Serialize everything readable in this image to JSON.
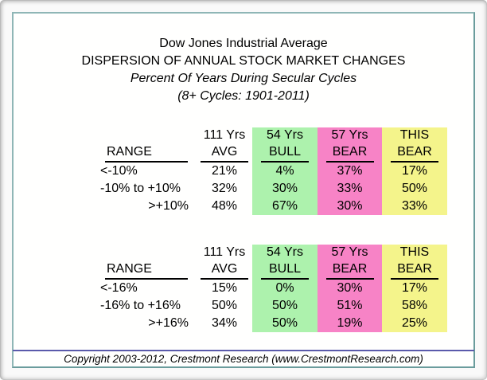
{
  "title": {
    "line1": "Dow Jones Industrial Average",
    "line2": "DISPERSION OF ANNUAL STOCK MARKET CHANGES",
    "line3": "Percent Of Years During Secular Cycles",
    "line4": "(8+ Cycles: 1901-2011)"
  },
  "colors": {
    "bull_green": "#adf2ad",
    "bear_pink": "#f783c6",
    "this_bear_yellow": "#f4f48b",
    "frame_teal": "#7fa9a9",
    "footer_line_navy": "#5a5aab"
  },
  "chart_data": [
    {
      "type": "table",
      "title": "Dispersion of annual changes vs ±10% range",
      "columns_line1": [
        "",
        "111 Yrs",
        "54 Yrs",
        "57 Yrs",
        "THIS"
      ],
      "columns_line2": [
        "RANGE",
        "AVG",
        "BULL",
        "BEAR",
        "BEAR"
      ],
      "column_colors": [
        "#ffffff",
        "#ffffff",
        "#adf2ad",
        "#f783c6",
        "#f4f48b"
      ],
      "rows": [
        [
          "<-10%",
          "21%",
          "4%",
          "37%",
          "17%"
        ],
        [
          "-10% to +10%",
          "32%",
          "30%",
          "33%",
          "50%"
        ],
        [
          ">+10%",
          "48%",
          "67%",
          "30%",
          "33%"
        ]
      ]
    },
    {
      "type": "table",
      "title": "Dispersion of annual changes vs ±16% range",
      "columns_line1": [
        "",
        "111 Yrs",
        "54 Yrs",
        "57 Yrs",
        "THIS"
      ],
      "columns_line2": [
        "RANGE",
        "AVG",
        "BULL",
        "BEAR",
        "BEAR"
      ],
      "column_colors": [
        "#ffffff",
        "#ffffff",
        "#adf2ad",
        "#f783c6",
        "#f4f48b"
      ],
      "rows": [
        [
          "<-16%",
          "15%",
          "0%",
          "30%",
          "17%"
        ],
        [
          "-16% to +16%",
          "50%",
          "50%",
          "51%",
          "58%"
        ],
        [
          ">+16%",
          "34%",
          "50%",
          "19%",
          "25%"
        ]
      ]
    }
  ],
  "footer": {
    "copyright": "Copyright 2003-2012, Crestmont Research (www.CrestmontResearch.com)"
  }
}
